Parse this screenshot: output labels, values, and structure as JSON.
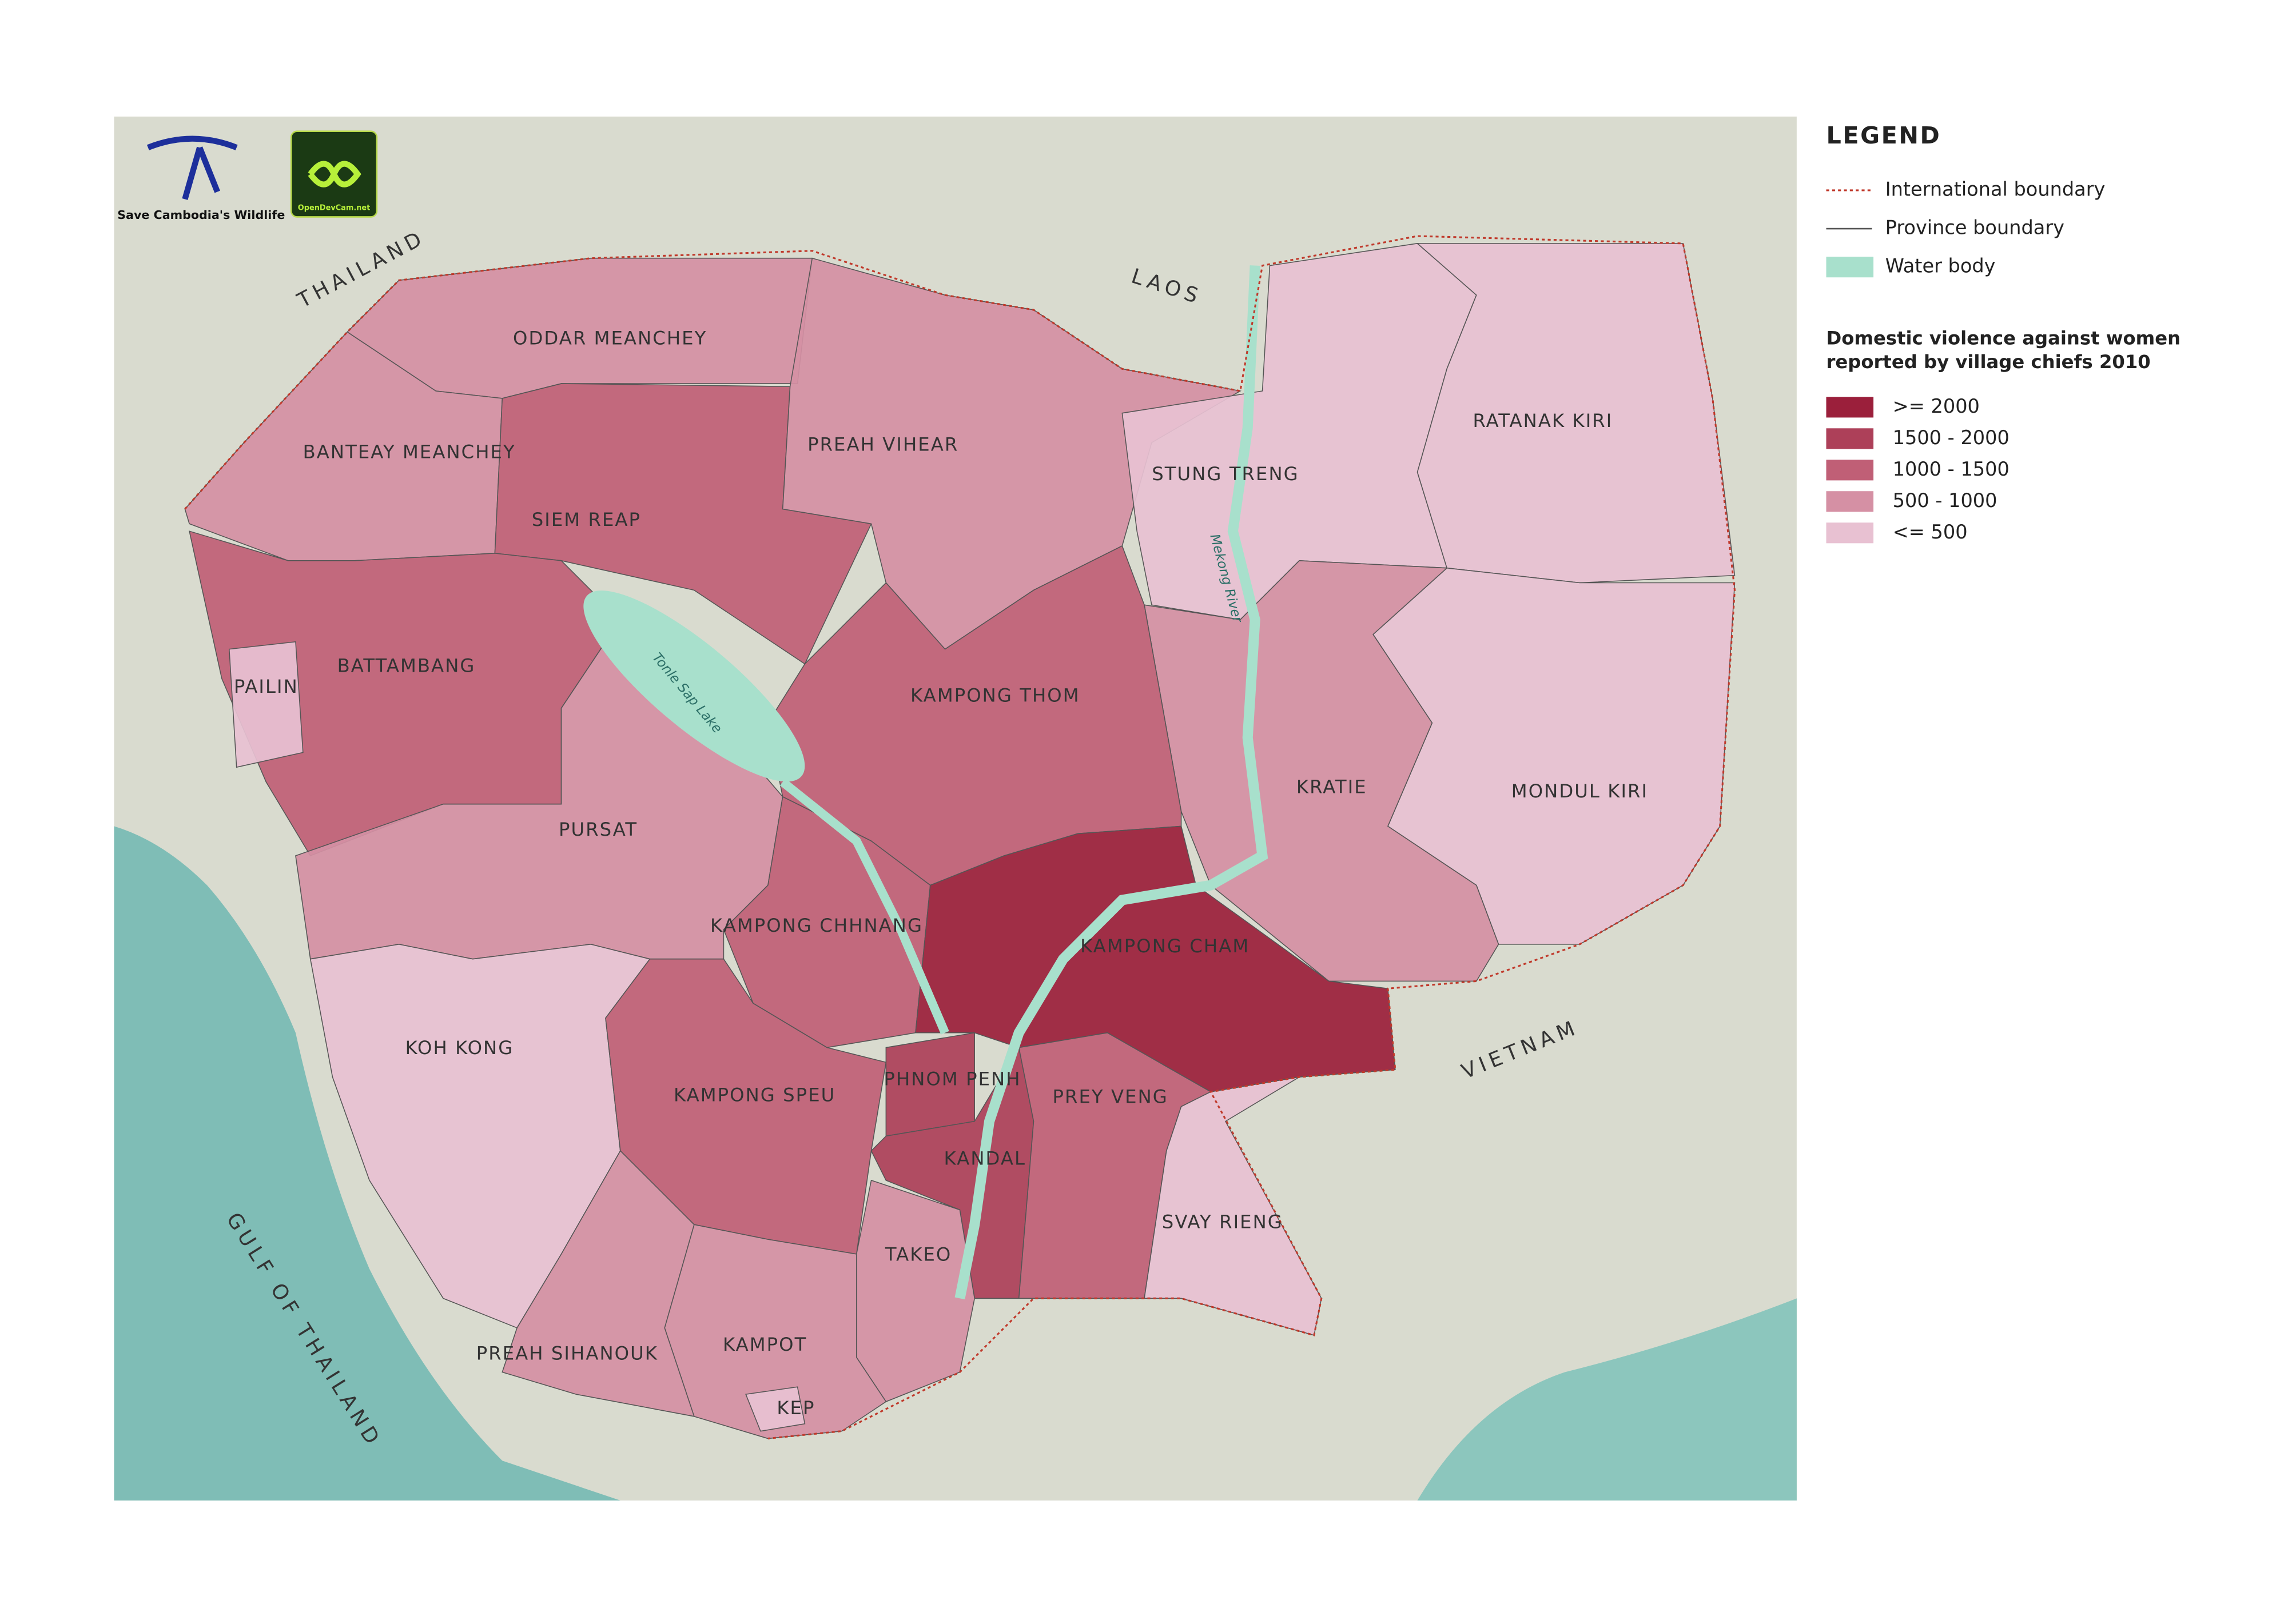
{
  "logos": [
    "Save Cambodia's Wildlife",
    "OpenDevCam.net"
  ],
  "legend": {
    "title": "LEGEND",
    "boundaries": [
      {
        "label": "International boundary",
        "color": "#c0392b"
      },
      {
        "label": "Province boundary",
        "color": "#555555"
      },
      {
        "label": "Water body",
        "color": "#a8e0cc"
      }
    ],
    "indicator_title": [
      "Domestic violence against women",
      "reported by village chiefs 2010"
    ],
    "classes": [
      {
        "label": ">=  2000",
        "color": "#9b1f3b"
      },
      {
        "label": "1500 - 2000",
        "color": "#ad4059"
      },
      {
        "label": "1000 - 1500",
        "color": "#c05f76"
      },
      {
        "label": "500 - 1000",
        "color": "#d590a4"
      },
      {
        "label": "<= 500",
        "color": "#e8c1d2"
      }
    ]
  },
  "provinces": [
    {
      "name": "ODDAR MEANCHEY",
      "class": "500 - 1000"
    },
    {
      "name": "BANTEAY MEANCHEY",
      "class": "500 - 1000"
    },
    {
      "name": "SIEM REAP",
      "class": "1000 - 1500"
    },
    {
      "name": "PREAH VIHEAR",
      "class": "500 - 1000"
    },
    {
      "name": "STUNG TRENG",
      "class": "<= 500"
    },
    {
      "name": "RATANAK KIRI",
      "class": "<= 500"
    },
    {
      "name": "MONDUL KIRI",
      "class": "<= 500"
    },
    {
      "name": "KRATIE",
      "class": "500 - 1000"
    },
    {
      "name": "KAMPONG THOM",
      "class": "1000 - 1500"
    },
    {
      "name": "BATTAMBANG",
      "class": "1000 - 1500"
    },
    {
      "name": "PAILIN",
      "class": "<= 500"
    },
    {
      "name": "PURSAT",
      "class": "500 - 1000"
    },
    {
      "name": "KAMPONG CHHNANG",
      "class": "1000 - 1500"
    },
    {
      "name": "KAMPONG CHAM",
      "class": ">=  2000"
    },
    {
      "name": "KOH KONG",
      "class": "<= 500"
    },
    {
      "name": "KAMPONG SPEU",
      "class": "1000 - 1500"
    },
    {
      "name": "PHNOM PENH",
      "class": "1500 - 2000"
    },
    {
      "name": "KANDAL",
      "class": "1500 - 2000"
    },
    {
      "name": "PREY VENG",
      "class": "1000 - 1500"
    },
    {
      "name": "SVAY RIENG",
      "class": "<= 500"
    },
    {
      "name": "TAKEO",
      "class": "500 - 1000"
    },
    {
      "name": "KAMPOT",
      "class": "500 - 1000"
    },
    {
      "name": "KEP",
      "class": "<= 500"
    },
    {
      "name": "PREAH SIHANOUK",
      "class": "500 - 1000"
    }
  ],
  "countries": [
    "THAILAND",
    "LAOS",
    "VIETNAM",
    "GULF OF THAILAND"
  ],
  "water_labels": [
    "Tonle Sap Lake",
    "Mekong River"
  ]
}
